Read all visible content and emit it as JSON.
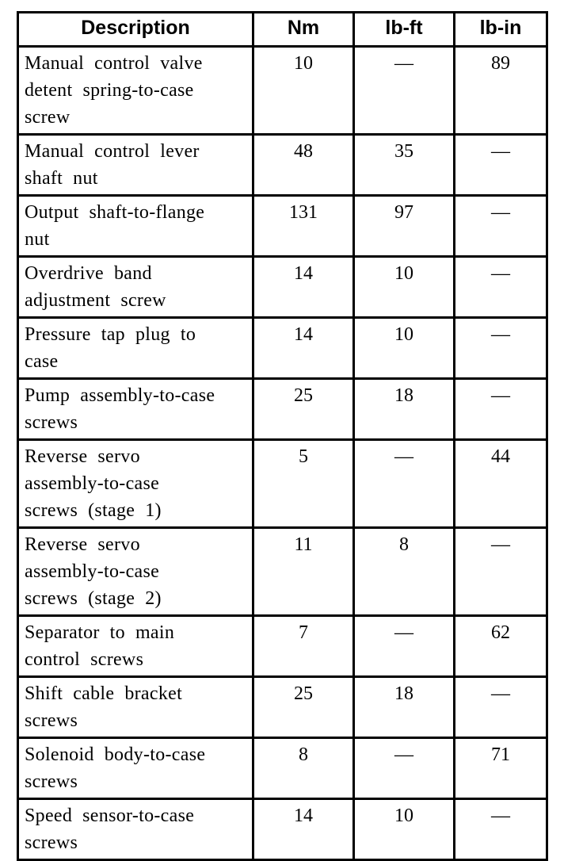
{
  "table": {
    "headers": [
      "Description",
      "Nm",
      "lb-ft",
      "lb-in"
    ],
    "rows": [
      {
        "lines": 3,
        "description": "Manual control valve\ndetent spring-to-case\nscrew",
        "nm": "10",
        "lb_ft": "—",
        "lb_in": "89"
      },
      {
        "lines": 2,
        "description": "Manual control lever\nshaft nut",
        "nm": "48",
        "lb_ft": "35",
        "lb_in": "—"
      },
      {
        "lines": 2,
        "description": "Output shaft-to-flange\nnut",
        "nm": "131",
        "lb_ft": "97",
        "lb_in": "—"
      },
      {
        "lines": 2,
        "description": "Overdrive band\nadjustment screw",
        "nm": "14",
        "lb_ft": "10",
        "lb_in": "—"
      },
      {
        "lines": 2,
        "description": "Pressure tap plug to\ncase",
        "nm": "14",
        "lb_ft": "10",
        "lb_in": "—"
      },
      {
        "lines": 2,
        "description": "Pump assembly-to-case\nscrews",
        "nm": "25",
        "lb_ft": "18",
        "lb_in": "—"
      },
      {
        "lines": 3,
        "description": "Reverse servo\nassembly-to-case\nscrews (stage 1)",
        "nm": "5",
        "lb_ft": "—",
        "lb_in": "44"
      },
      {
        "lines": 3,
        "description": "Reverse servo\nassembly-to-case\nscrews (stage 2)",
        "nm": "11",
        "lb_ft": "8",
        "lb_in": "—"
      },
      {
        "lines": 2,
        "description": "Separator to main\ncontrol screws",
        "nm": "7",
        "lb_ft": "—",
        "lb_in": "62"
      },
      {
        "lines": 2,
        "description": "Shift cable bracket\nscrews",
        "nm": "25",
        "lb_ft": "18",
        "lb_in": "—"
      },
      {
        "lines": 2,
        "description": "Solenoid body-to-case\nscrews",
        "nm": "8",
        "lb_ft": "—",
        "lb_in": "71"
      },
      {
        "lines": 2,
        "description": "Speed sensor-to-case\nscrews",
        "nm": "14",
        "lb_ft": "10",
        "lb_in": "—"
      }
    ]
  }
}
